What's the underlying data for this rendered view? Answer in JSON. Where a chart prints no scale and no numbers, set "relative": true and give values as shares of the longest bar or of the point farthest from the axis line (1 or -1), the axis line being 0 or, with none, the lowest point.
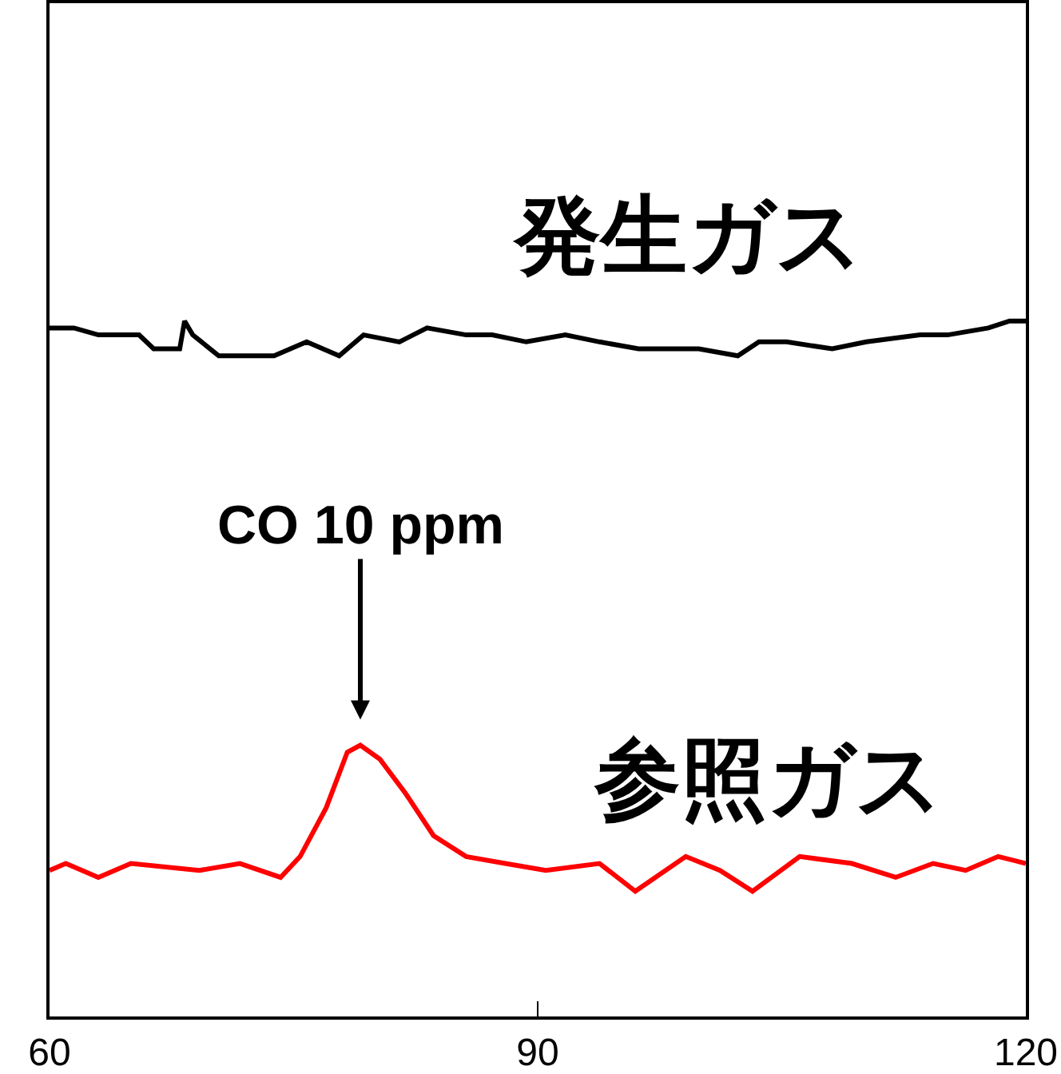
{
  "chart_data": {
    "type": "line",
    "relative": true,
    "xlim": [
      60,
      120
    ],
    "xticks": [
      60,
      90,
      120
    ],
    "grid": false,
    "legend": false,
    "marker": "none",
    "line_style": "solid",
    "annotations": [
      {
        "text": "CO 10 ppm",
        "x": 79.1,
        "y": 0.39
      }
    ],
    "series": [
      {
        "name": "発生ガス",
        "color": "#000000",
        "x": [
          60,
          61.5,
          63,
          65.5,
          66.4,
          68,
          68.3,
          68.8,
          70.4,
          73.8,
          75.8,
          77.8,
          79.3,
          81.5,
          83.2,
          85.6,
          87.2,
          89.3,
          91.7,
          93.8,
          96.2,
          98.3,
          99.9,
          102.3,
          103.6,
          105.3,
          108.1,
          110.2,
          113.5,
          115.2,
          117.7,
          119,
          120
        ],
        "values": [
          0.99,
          0.99,
          0.98,
          0.98,
          0.96,
          0.96,
          1.0,
          0.98,
          0.95,
          0.95,
          0.97,
          0.95,
          0.98,
          0.97,
          0.99,
          0.98,
          0.98,
          0.97,
          0.98,
          0.97,
          0.96,
          0.96,
          0.96,
          0.95,
          0.97,
          0.97,
          0.96,
          0.97,
          0.98,
          0.98,
          0.99,
          1.0,
          1.0
        ]
      },
      {
        "name": "参照ガス",
        "color": "#ff0000",
        "x": [
          60,
          61,
          63,
          65,
          69.2,
          71.7,
          74.2,
          75.4,
          77,
          78.3,
          79.1,
          80.3,
          81.9,
          83.6,
          85.6,
          88,
          90.5,
          93.8,
          96,
          99.1,
          101.2,
          103.2,
          106.1,
          109.3,
          112,
          114.3,
          116.3,
          118.3,
          120
        ],
        "values": [
          0.21,
          0.22,
          0.2,
          0.22,
          0.21,
          0.22,
          0.2,
          0.23,
          0.3,
          0.38,
          0.39,
          0.37,
          0.32,
          0.26,
          0.23,
          0.22,
          0.21,
          0.22,
          0.18,
          0.23,
          0.21,
          0.18,
          0.23,
          0.22,
          0.2,
          0.22,
          0.21,
          0.23,
          0.22
        ]
      }
    ]
  }
}
